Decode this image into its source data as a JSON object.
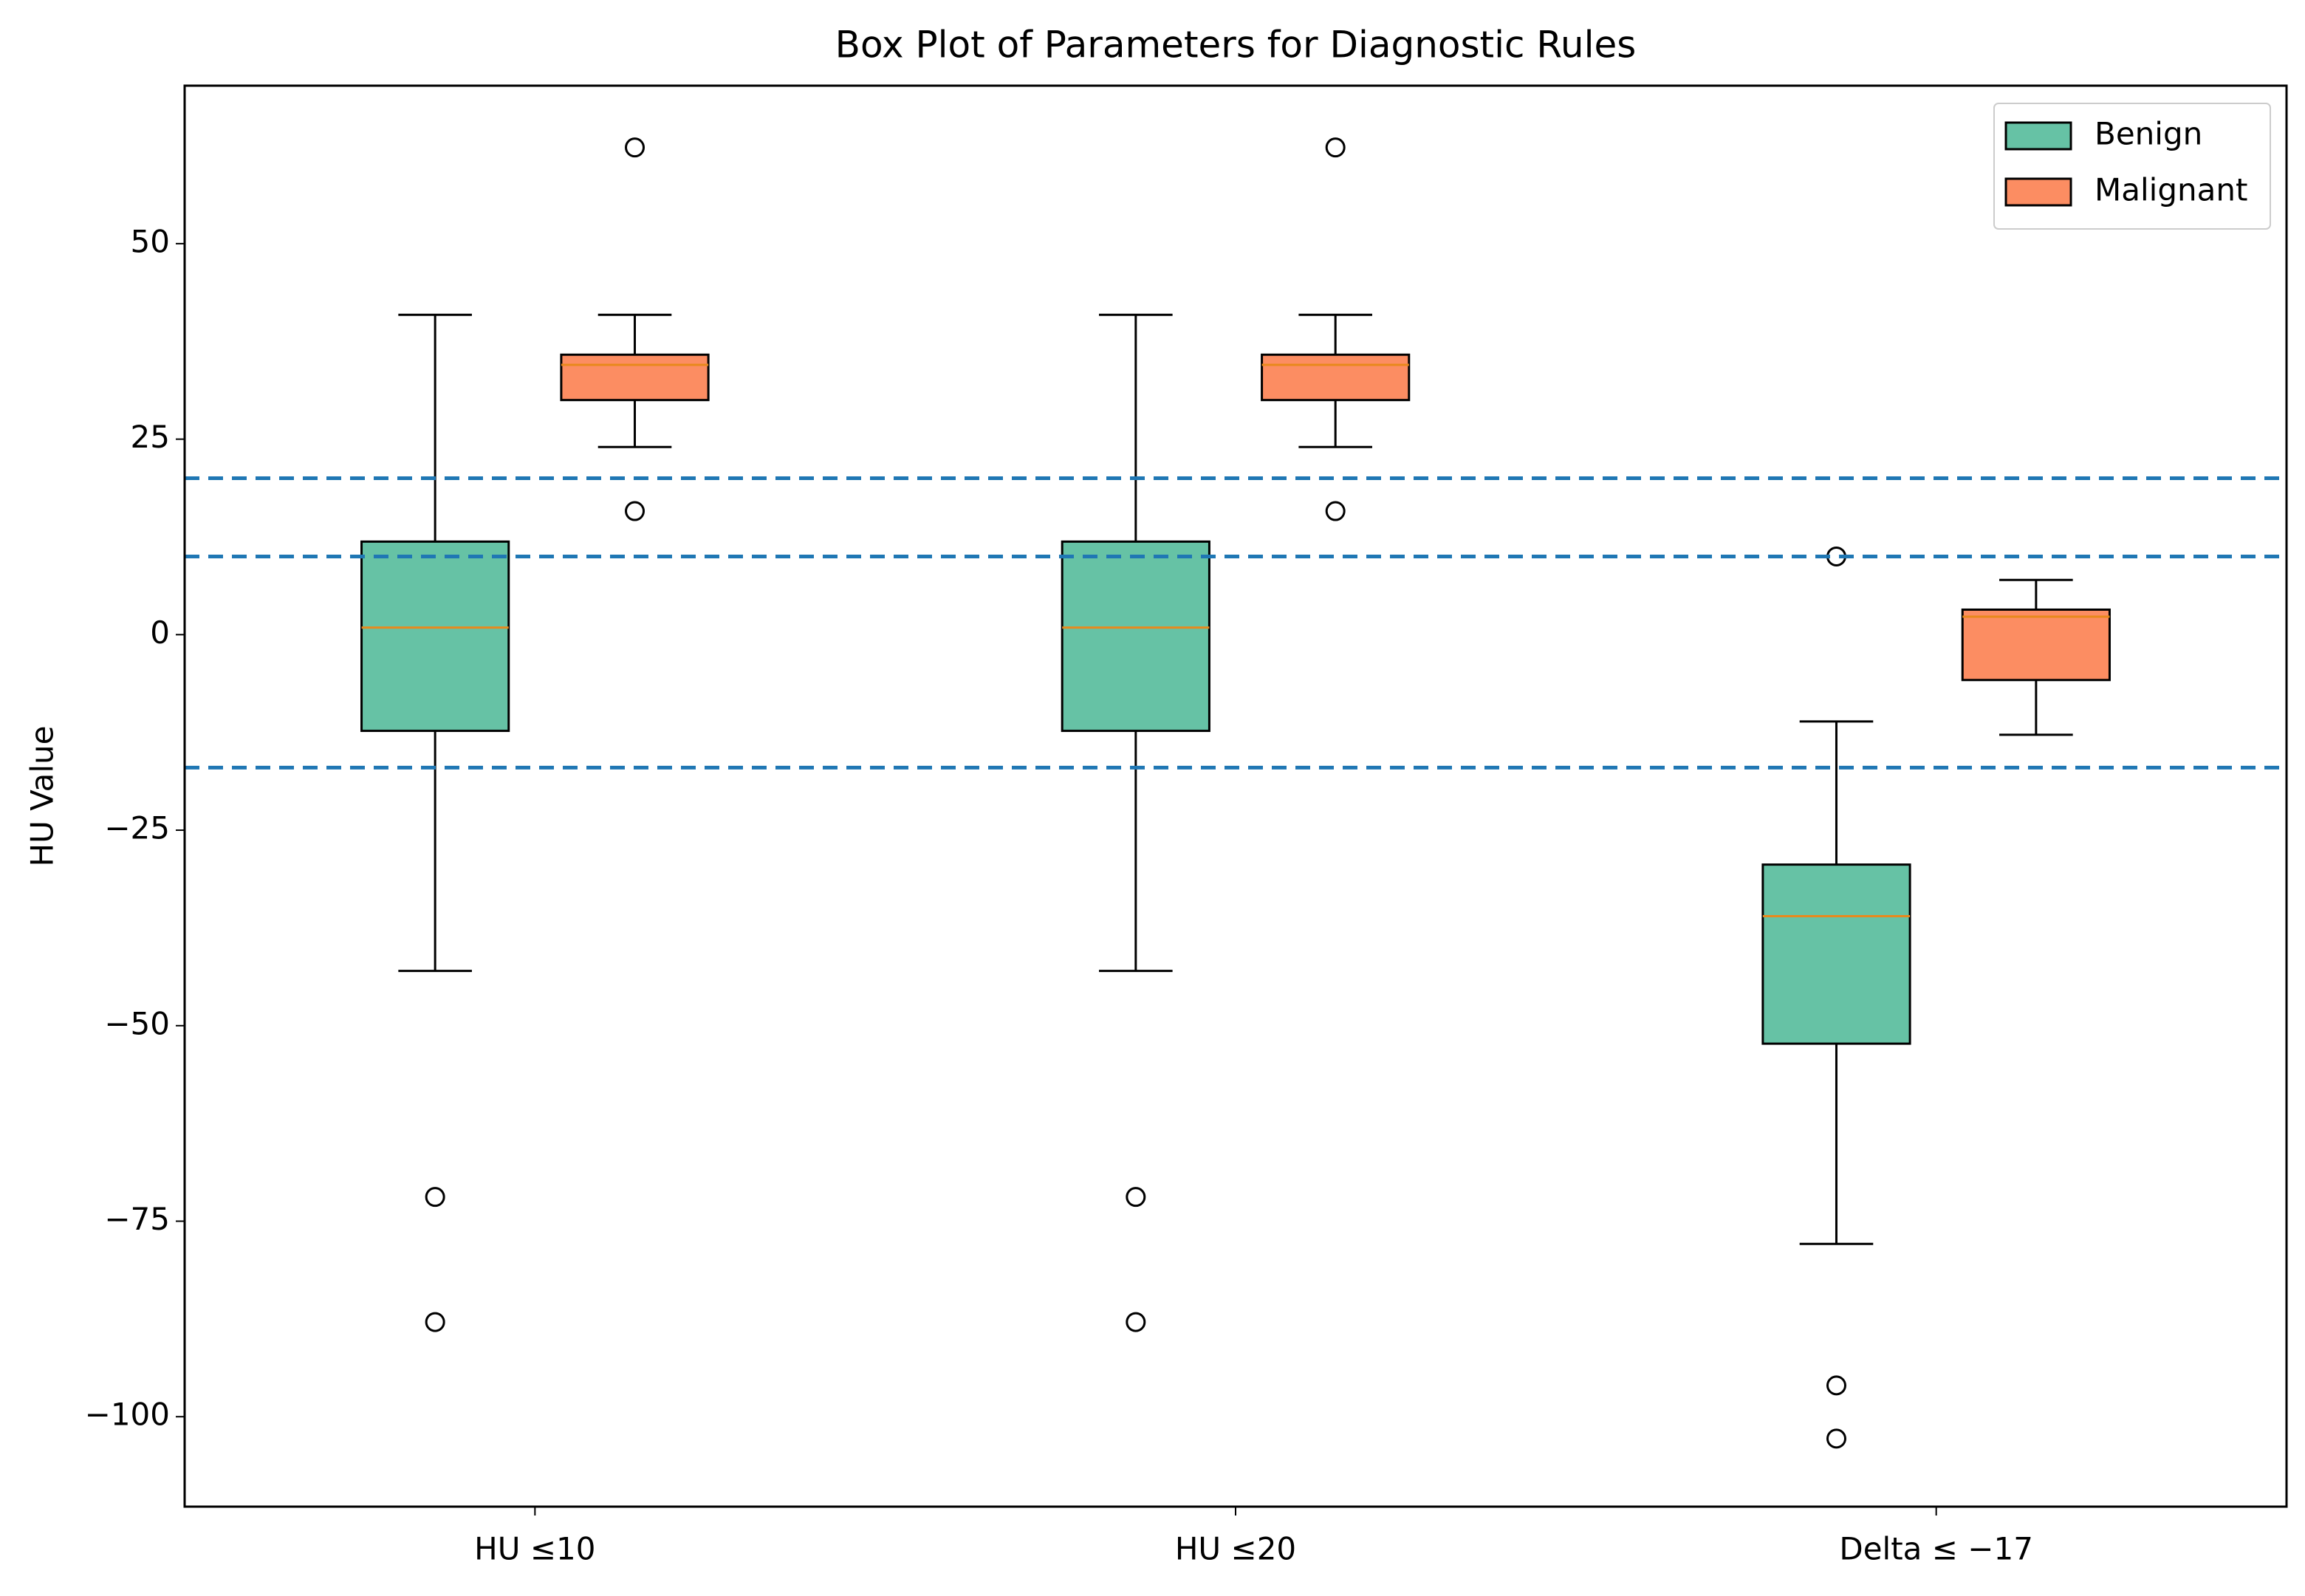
{
  "chart_data": {
    "type": "box",
    "title": "Box Plot of Parameters for Diagnostic Rules",
    "y_label": "HU Value",
    "categories": [
      "HU ≤10",
      "HU ≤20",
      "Delta ≤ −17"
    ],
    "ylim": [
      -111.5,
      70.2
    ],
    "yticks": [
      {
        "value": -100,
        "label": "−100"
      },
      {
        "value": -75,
        "label": "−75"
      },
      {
        "value": -50,
        "label": "−50"
      },
      {
        "value": -25,
        "label": "−25"
      },
      0,
      25,
      50
    ],
    "hlines": [
      20,
      10,
      -17
    ],
    "hline_color": "#1f77b4",
    "median_color": "#e8891c",
    "legend_loc": "upper right",
    "series": [
      {
        "name": "Benign",
        "color": "#66c2a5",
        "boxes": [
          {
            "whislo": -43,
            "q1": -12.3,
            "med": 0.9,
            "q3": 11.9,
            "whishi": 40.9,
            "fliers": [
              -71.9,
              -87.9
            ]
          },
          {
            "whislo": -43,
            "q1": -12.3,
            "med": 0.9,
            "q3": 11.9,
            "whishi": 40.9,
            "fliers": [
              -71.9,
              -87.9
            ]
          },
          {
            "whislo": -77.9,
            "q1": -52.3,
            "med": -36,
            "q3": -29.4,
            "whishi": -11.1,
            "fliers": [
              10,
              -96,
              -102.8
            ]
          }
        ]
      },
      {
        "name": "Malignant",
        "color": "#fc8d62",
        "boxes": [
          {
            "whislo": 24,
            "q1": 30,
            "med": 34.5,
            "q3": 35.8,
            "whishi": 40.9,
            "fliers": [
              62.3,
              15.8
            ]
          },
          {
            "whislo": 24,
            "q1": 30,
            "med": 34.5,
            "q3": 35.8,
            "whishi": 40.9,
            "fliers": [
              62.3,
              15.8
            ]
          },
          {
            "whislo": -12.8,
            "q1": -5.8,
            "med": 2.3,
            "q3": 3.2,
            "whishi": 7,
            "fliers": []
          }
        ]
      }
    ]
  }
}
